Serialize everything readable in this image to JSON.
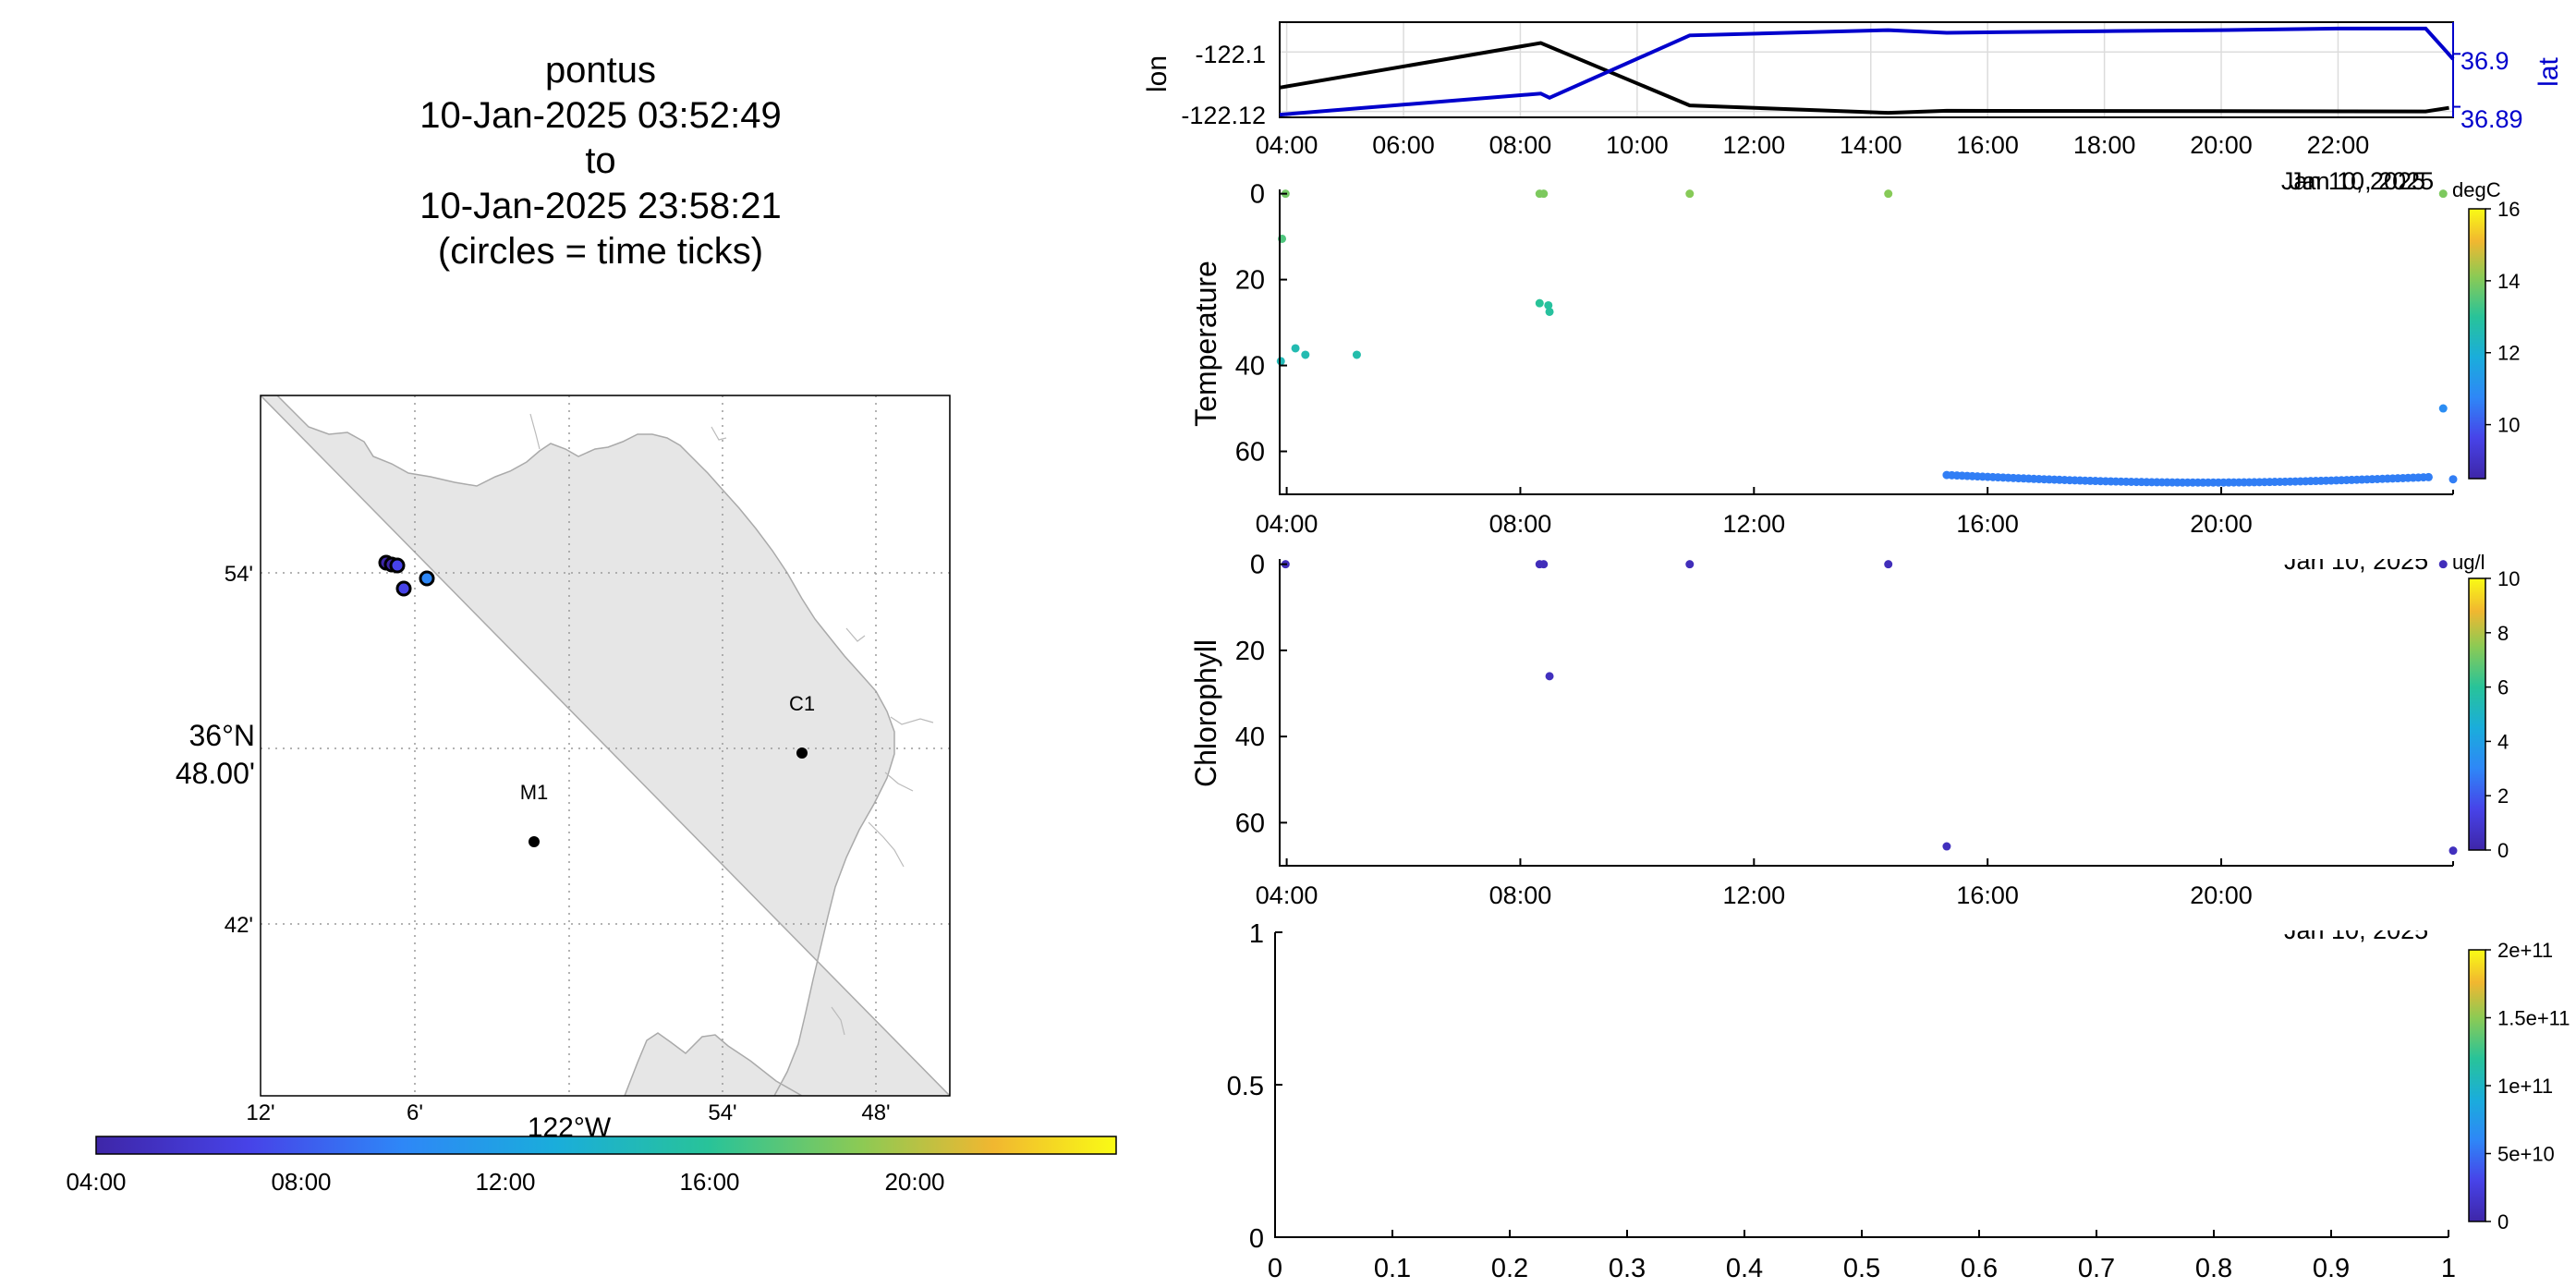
{
  "header": {
    "title_lines": [
      "pontus",
      "10-Jan-2025 03:52:49",
      "to",
      "10-Jan-2025 23:58:21",
      "(circles = time ticks)"
    ]
  },
  "map": {
    "lon_ticks": [
      "12'",
      "6'",
      "54'",
      "48'"
    ],
    "lon_center_label": "122°W",
    "lat_ticks": [
      "54'",
      "42'"
    ],
    "lat_center_label_1": "36°N",
    "lat_center_label_2": "48.00'",
    "stations": [
      {
        "name": "C1",
        "lon": -121.847,
        "lat": 36.797
      },
      {
        "name": "M1",
        "lon": -122.022,
        "lat": 36.747
      }
    ],
    "colors": {
      "land": "#e6e6e6",
      "coast": "#aaaaaa",
      "grid": "#999999"
    }
  },
  "time_colorbar": {
    "labels": [
      "04:00",
      "08:00",
      "12:00",
      "16:00",
      "20:00"
    ],
    "colormap": [
      "#3e26a8",
      "#4743e8",
      "#2e87f7",
      "#1aaddb",
      "#28c399",
      "#8cca54",
      "#f1b730",
      "#f9fb15"
    ]
  },
  "chart_data": [
    {
      "type": "line",
      "panel": "position",
      "xlabel_ticks": [
        "04:00",
        "06:00",
        "08:00",
        "10:00",
        "12:00",
        "14:00",
        "16:00",
        "18:00",
        "20:00",
        "22:00"
      ],
      "date_label": "Jan 10, 2025",
      "ylabel_left": "lon",
      "ylabel_right": "lat",
      "yticks_left": [
        "-122.1",
        "-122.12"
      ],
      "yticks_right": [
        "36.9",
        "36.89"
      ],
      "xlim": [
        3.88,
        23.97
      ],
      "ylim_left": [
        -122.122,
        -122.09
      ],
      "ylim_right": [
        36.888,
        36.906
      ],
      "series": [
        {
          "name": "lon",
          "color": "#000000",
          "x": [
            3.88,
            8.35,
            10.9,
            14.3,
            15.3,
            23.5,
            23.9
          ],
          "values": [
            -122.112,
            -122.097,
            -122.118,
            -122.1205,
            -122.1198,
            -122.12,
            -122.1188
          ]
        },
        {
          "name": "lat",
          "color": "#0000cc",
          "x": [
            3.88,
            8.35,
            8.5,
            10.9,
            14.3,
            15.3,
            18.0,
            20.0,
            22.0,
            23.5,
            23.85,
            23.97
          ],
          "values": [
            36.8885,
            36.8925,
            36.8917,
            36.9035,
            36.9045,
            36.904,
            36.9043,
            36.9045,
            36.9048,
            36.9048,
            36.9005,
            36.899
          ]
        }
      ]
    },
    {
      "type": "scatter",
      "panel": "temperature",
      "ylabel": "Temperature",
      "units": "degC",
      "date_label": "Jan 10, 2025",
      "xticks": [
        "04:00",
        "08:00",
        "12:00",
        "16:00",
        "20:00"
      ],
      "yticks": [
        "0",
        "20",
        "40",
        "60"
      ],
      "ylim": [
        -1,
        70
      ],
      "xlim": [
        3.88,
        23.97
      ],
      "clim": [
        8.5,
        16
      ],
      "colorbar_ticks": [
        "16",
        "14",
        "12",
        "10"
      ],
      "surface_points": [
        {
          "x": 3.98,
          "y": 0,
          "v": 13.6
        },
        {
          "x": 8.33,
          "y": 0,
          "v": 13.7
        },
        {
          "x": 8.4,
          "y": 0,
          "v": 13.7
        },
        {
          "x": 10.9,
          "y": 0,
          "v": 13.8
        },
        {
          "x": 14.3,
          "y": 0,
          "v": 13.8
        },
        {
          "x": 23.8,
          "y": 0,
          "v": 13.7
        }
      ],
      "cast_points": [
        {
          "x": 3.92,
          "y": 10.5,
          "v": 13.2
        },
        {
          "x": 3.9,
          "y": 39,
          "v": 12.3
        },
        {
          "x": 4.15,
          "y": 36,
          "v": 12.4
        },
        {
          "x": 4.32,
          "y": 37.5,
          "v": 12.4
        },
        {
          "x": 5.2,
          "y": 37.5,
          "v": 12.5
        },
        {
          "x": 8.33,
          "y": 25.5,
          "v": 12.8
        },
        {
          "x": 8.48,
          "y": 26,
          "v": 12.7
        },
        {
          "x": 8.5,
          "y": 27.5,
          "v": 12.7
        },
        {
          "x": 23.8,
          "y": 50,
          "v": 10.8
        },
        {
          "x": 23.97,
          "y": 66.5,
          "v": 10.5
        }
      ],
      "deep_track": {
        "x_start": 15.3,
        "x_end": 23.55,
        "y_start": 65.5,
        "y_end": 66.5,
        "y_mid": 67,
        "v": 10.5
      }
    },
    {
      "type": "scatter",
      "panel": "chlorophyll",
      "ylabel": "Chlorophyll",
      "units": "ug/l",
      "date_label": "Jan 10, 2025",
      "xticks": [
        "04:00",
        "08:00",
        "12:00",
        "16:00",
        "20:00"
      ],
      "yticks": [
        "0",
        "20",
        "40",
        "60"
      ],
      "ylim": [
        -1,
        70
      ],
      "xlim": [
        3.88,
        23.97
      ],
      "clim": [
        0,
        10
      ],
      "colorbar_ticks": [
        "10",
        "8",
        "6",
        "4",
        "2",
        "0"
      ],
      "points": [
        {
          "x": 3.98,
          "y": 0,
          "v": 0.4
        },
        {
          "x": 8.33,
          "y": 0,
          "v": 0.4
        },
        {
          "x": 8.4,
          "y": 0,
          "v": 0.4
        },
        {
          "x": 10.9,
          "y": 0,
          "v": 0.4
        },
        {
          "x": 14.3,
          "y": 0,
          "v": 0.4
        },
        {
          "x": 8.5,
          "y": 26,
          "v": 0.5
        },
        {
          "x": 15.3,
          "y": 65.5,
          "v": 0.5
        },
        {
          "x": 23.8,
          "y": 0,
          "v": 0.4
        },
        {
          "x": 23.97,
          "y": 66.5,
          "v": 0.5
        }
      ]
    },
    {
      "type": "scatter",
      "panel": "empty",
      "xticks": [
        "0",
        "0.1",
        "0.2",
        "0.3",
        "0.4",
        "0.5",
        "0.6",
        "0.7",
        "0.8",
        "0.9",
        "1"
      ],
      "yticks": [
        "1",
        "0.5",
        "0"
      ],
      "xlim": [
        0,
        1
      ],
      "ylim": [
        0,
        1
      ],
      "colorbar_ticks": [
        "2e+11",
        "1.5e+11",
        "1e+11",
        "5e+10",
        "0"
      ],
      "points": []
    }
  ]
}
